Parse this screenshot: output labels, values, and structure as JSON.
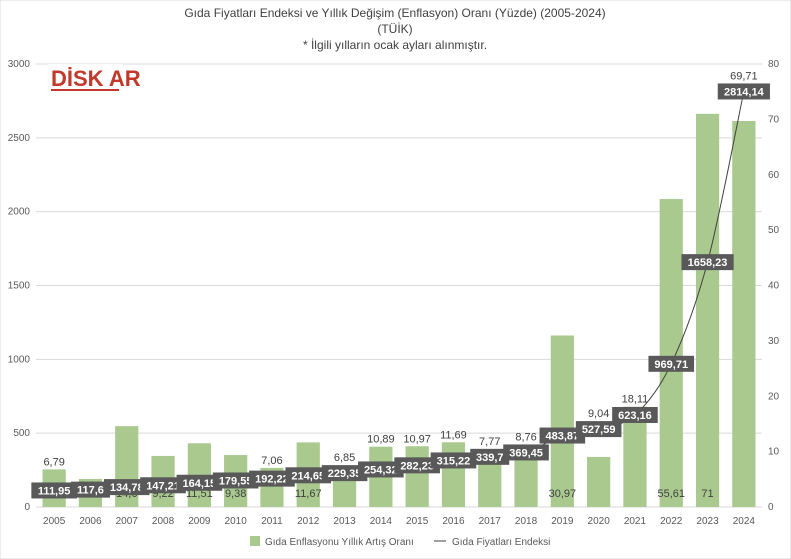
{
  "chart_data": {
    "type": "bar+line",
    "title": "Gıda Fiyatları Endeksi ve Yıllık Değişim (Enflasyon) Oranı (Yüzde) (2005-2024)",
    "subtitle1": "(TÜİK)",
    "subtitle2": "* İlgili yılların ocak ayları alınmıştır.",
    "categories": [
      "2005",
      "2006",
      "2007",
      "2008",
      "2009",
      "2010",
      "2011",
      "2012",
      "2013",
      "2014",
      "2015",
      "2016",
      "2017",
      "2018",
      "2019",
      "2020",
      "2021",
      "2022",
      "2023",
      "2024"
    ],
    "series": [
      {
        "name": "Gıda Enflasyonu Yıllık Artış Oranı",
        "type": "bar",
        "axis": "right",
        "color": "#a9c98f",
        "values": [
          6.79,
          5.06,
          14.6,
          9.22,
          11.51,
          9.38,
          7.06,
          11.67,
          6.85,
          10.89,
          10.97,
          11.69,
          7.77,
          8.76,
          30.97,
          9.04,
          18.11,
          55.61,
          71,
          69.71
        ],
        "labels": [
          "6,79",
          "5,06",
          "14,6",
          "9,22",
          "11,51",
          "9,38",
          "7,06",
          "11,67",
          "6,85",
          "10,89",
          "10,97",
          "11,69",
          "7,77",
          "8,76",
          "30,97",
          "9,04",
          "18,11",
          "55,61",
          "71",
          "69,71"
        ]
      },
      {
        "name": "Gıda Fiyatları Endeksi",
        "type": "line",
        "axis": "left",
        "color": "#404040",
        "values": [
          111.95,
          117.6,
          134.78,
          147.21,
          164.15,
          179.55,
          192.22,
          214.65,
          229.35,
          254.32,
          282.23,
          315.22,
          339.7,
          369.45,
          483.87,
          527.59,
          623.16,
          969.71,
          1658.23,
          2814.14
        ],
        "labels": [
          "111,95",
          "117,6",
          "134,78",
          "147,21",
          "164,15",
          "179,55",
          "192,22",
          "214,65",
          "229,35",
          "254,32",
          "282,23",
          "315,22",
          "339,7",
          "369,45",
          "483,87",
          "527,59",
          "623,16",
          "969,71",
          "1658,23",
          "2814,14"
        ]
      }
    ],
    "y_left": {
      "min": 0,
      "max": 3000,
      "ticks": [
        "0",
        "500",
        "1000",
        "1500",
        "2000",
        "2500",
        "3000"
      ]
    },
    "y_right": {
      "min": 0,
      "max": 80,
      "ticks": [
        "0",
        "10",
        "20",
        "30",
        "40",
        "50",
        "60",
        "70",
        "80"
      ]
    },
    "legend": [
      "Gıda Enflasyonu Yıllık Artış Oranı",
      "Gıda Fiyatları Endeksi"
    ],
    "legend_position": "bottom"
  },
  "logo": {
    "text": "DİSK AR"
  }
}
